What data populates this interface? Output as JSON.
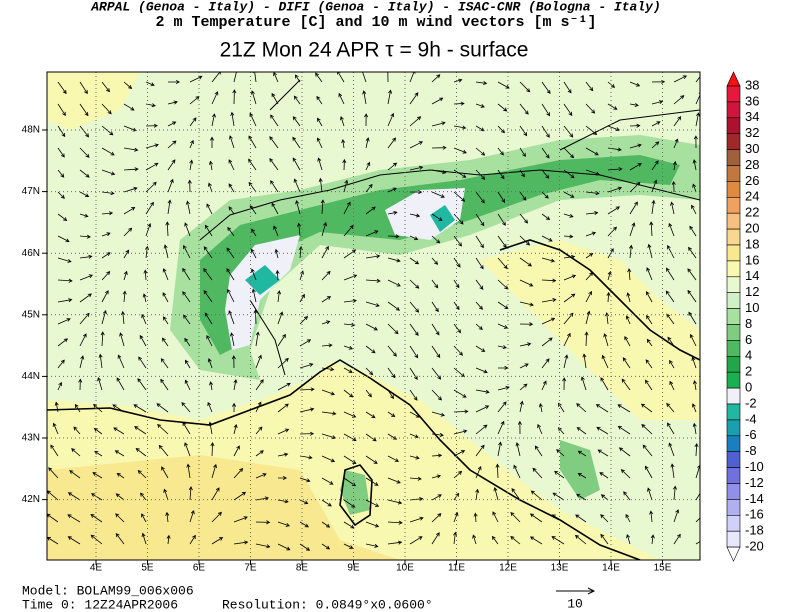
{
  "header": {
    "credits": "ARPAL (Genoa - Italy)  -  DIFI (Genoa - Italy)  -  ISAC-CNR (Bologna - Italy)",
    "field": "2 m Temperature [C] and 10 m wind vectors [m s⁻¹]",
    "title": "21Z Mon 24 APR  τ = 9h  -  surface"
  },
  "map": {
    "lon_labels": [
      "4E",
      "5E",
      "6E",
      "7E",
      "8E",
      "9E",
      "10E",
      "11E",
      "12E",
      "13E",
      "14E",
      "15E"
    ],
    "lat_labels": [
      "48N",
      "47N",
      "46N",
      "45N",
      "44N",
      "43N",
      "42N"
    ]
  },
  "colorbar": {
    "levels": [
      38,
      36,
      34,
      32,
      30,
      28,
      26,
      24,
      22,
      20,
      18,
      16,
      14,
      12,
      10,
      8,
      6,
      4,
      2,
      0,
      -2,
      -4,
      -6,
      -8,
      -10,
      -12,
      -14,
      -16,
      -18,
      -20
    ],
    "colors": [
      "#ff1010",
      "#e8183c",
      "#d0143c",
      "#b01030",
      "#a0282a",
      "#a0603a",
      "#c07840",
      "#e08a40",
      "#f0a060",
      "#f8c080",
      "#f8d890",
      "#f8e890",
      "#f8f8b0",
      "#e8f8d0",
      "#d0f0c8",
      "#a8e0a0",
      "#80cc80",
      "#50b860",
      "#20a848",
      "#18b050",
      "#f0f0f8",
      "#20b8a0",
      "#18a0b0",
      "#1880c0",
      "#5060d0",
      "#7070e0",
      "#9090e8",
      "#b0b0f0",
      "#d0d0f8",
      "#e8e8fc",
      "#ffffff"
    ]
  },
  "footer": {
    "model": "Model: BOLAM99_006x006",
    "time": "Time 0: 12Z24APR2006",
    "resolution": "Resolution: 0.0849°x0.0600°",
    "reference_vector": "10"
  }
}
